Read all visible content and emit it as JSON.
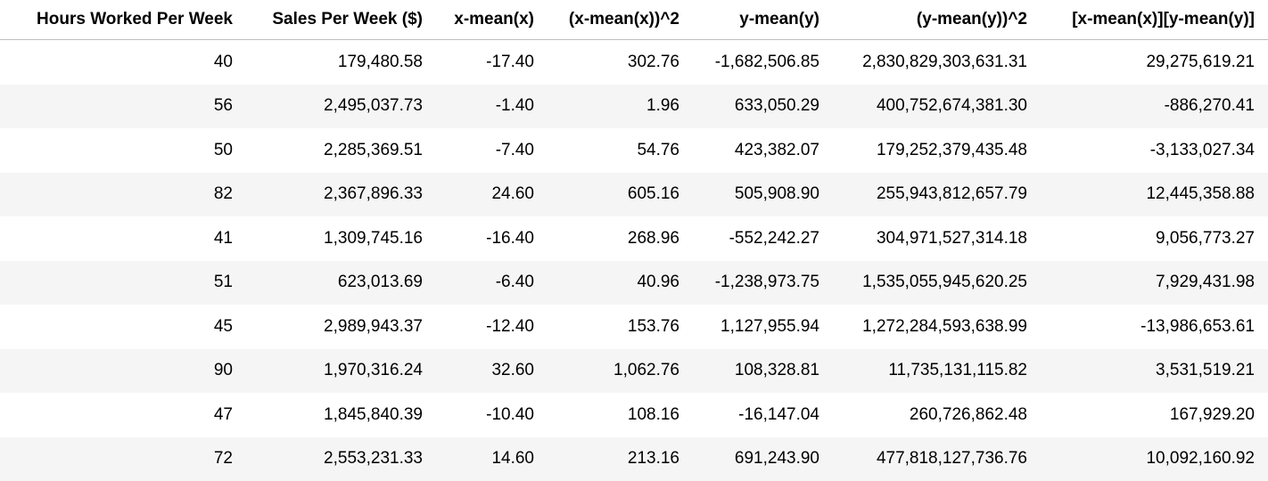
{
  "table": {
    "columns": [
      "Hours Worked Per Week",
      "Sales Per Week ($)",
      "x-mean(x)",
      "(x-mean(x))^2",
      "y-mean(y)",
      "(y-mean(y))^2",
      "[x-mean(x)][y-mean(y)]"
    ],
    "rows": [
      [
        "40",
        "179,480.58",
        "-17.40",
        "302.76",
        "-1,682,506.85",
        "2,830,829,303,631.31",
        "29,275,619.21"
      ],
      [
        "56",
        "2,495,037.73",
        "-1.40",
        "1.96",
        "633,050.29",
        "400,752,674,381.30",
        "-886,270.41"
      ],
      [
        "50",
        "2,285,369.51",
        "-7.40",
        "54.76",
        "423,382.07",
        "179,252,379,435.48",
        "-3,133,027.34"
      ],
      [
        "82",
        "2,367,896.33",
        "24.60",
        "605.16",
        "505,908.90",
        "255,943,812,657.79",
        "12,445,358.88"
      ],
      [
        "41",
        "1,309,745.16",
        "-16.40",
        "268.96",
        "-552,242.27",
        "304,971,527,314.18",
        "9,056,773.27"
      ],
      [
        "51",
        "623,013.69",
        "-6.40",
        "40.96",
        "-1,238,973.75",
        "1,535,055,945,620.25",
        "7,929,431.98"
      ],
      [
        "45",
        "2,989,943.37",
        "-12.40",
        "153.76",
        "1,127,955.94",
        "1,272,284,593,638.99",
        "-13,986,653.61"
      ],
      [
        "90",
        "1,970,316.24",
        "32.60",
        "1,062.76",
        "108,328.81",
        "11,735,131,115.82",
        "3,531,519.21"
      ],
      [
        "47",
        "1,845,840.39",
        "-10.40",
        "108.16",
        "-16,147.04",
        "260,726,862.48",
        "167,929.20"
      ],
      [
        "72",
        "2,553,231.33",
        "14.60",
        "213.16",
        "691,243.90",
        "477,818,127,736.76",
        "10,092,160.92"
      ]
    ]
  }
}
